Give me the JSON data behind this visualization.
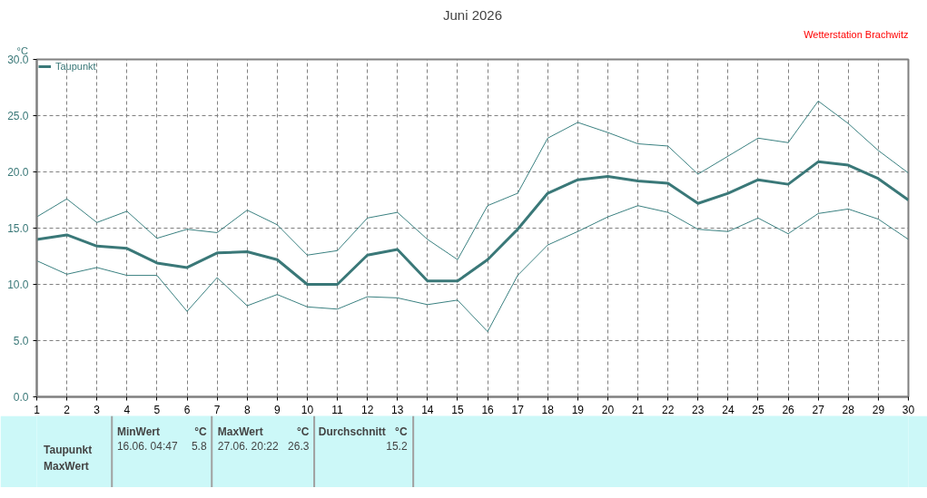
{
  "chart_data": {
    "type": "line",
    "title": "Juni 2026",
    "ylabel": "°C",
    "x": [
      1,
      2,
      3,
      4,
      5,
      6,
      7,
      8,
      9,
      10,
      11,
      12,
      13,
      14,
      15,
      16,
      17,
      18,
      19,
      20,
      21,
      22,
      23,
      24,
      25,
      26,
      27,
      28,
      29,
      30
    ],
    "series": [
      {
        "color": "#3a8080",
        "values": [
          16.0,
          17.6,
          15.5,
          16.5,
          14.1,
          14.9,
          14.6,
          16.6,
          15.3,
          12.6,
          13.0,
          15.9,
          16.4,
          14.0,
          12.2,
          17.0,
          18.1,
          23.0,
          24.4,
          23.5,
          22.5,
          22.3,
          19.8,
          21.4,
          23.0,
          22.6,
          26.3,
          24.3,
          21.9,
          19.9
        ]
      },
      {
        "name": "Taupunkt",
        "color": "#3a7878",
        "values": [
          14.0,
          14.4,
          13.4,
          13.2,
          11.9,
          11.5,
          12.8,
          12.9,
          12.2,
          10.0,
          10.0,
          12.6,
          13.1,
          10.3,
          10.3,
          12.2,
          14.9,
          18.1,
          19.3,
          19.6,
          19.2,
          19.0,
          17.2,
          18.1,
          19.3,
          18.9,
          20.9,
          20.6,
          19.4,
          17.5
        ]
      },
      {
        "color": "#3a8080",
        "values": [
          12.1,
          10.9,
          11.5,
          10.8,
          10.8,
          7.6,
          10.6,
          8.1,
          9.1,
          8.0,
          7.8,
          8.9,
          8.8,
          8.2,
          8.6,
          5.8,
          10.8,
          13.5,
          14.7,
          16.0,
          17.0,
          16.4,
          14.9,
          14.7,
          15.9,
          14.5,
          16.3,
          16.7,
          15.8,
          14.0
        ]
      }
    ],
    "xlim": [
      1,
      30
    ],
    "ylim": [
      0,
      30
    ],
    "xticks": [
      1,
      2,
      3,
      4,
      5,
      6,
      7,
      8,
      9,
      10,
      11,
      12,
      13,
      14,
      15,
      16,
      17,
      18,
      19,
      20,
      21,
      22,
      23,
      24,
      25,
      26,
      27,
      28,
      29,
      30
    ],
    "yticks": [
      {
        "value": 0,
        "label": "0.0"
      },
      {
        "value": 5,
        "label": "5.0"
      },
      {
        "value": 10,
        "label": "10.0"
      },
      {
        "value": 15,
        "label": "15.0"
      },
      {
        "value": 20,
        "label": "20.0"
      },
      {
        "value": 25,
        "label": "25.0"
      },
      {
        "value": 30,
        "label": "30.0"
      }
    ],
    "grid": true,
    "legend": "top left",
    "marker": "none",
    "line_style": "solid",
    "annotations": [
      "Wetterstation Brachwitz",
      "MinWert",
      "°C",
      "MaxWert",
      "°C",
      "Durchschnitt",
      "°C",
      "Taupunkt",
      "16.06.  04:47",
      "5.8",
      "27.06.  20:22",
      "26.3",
      "15.2",
      "MaxWert"
    ]
  }
}
